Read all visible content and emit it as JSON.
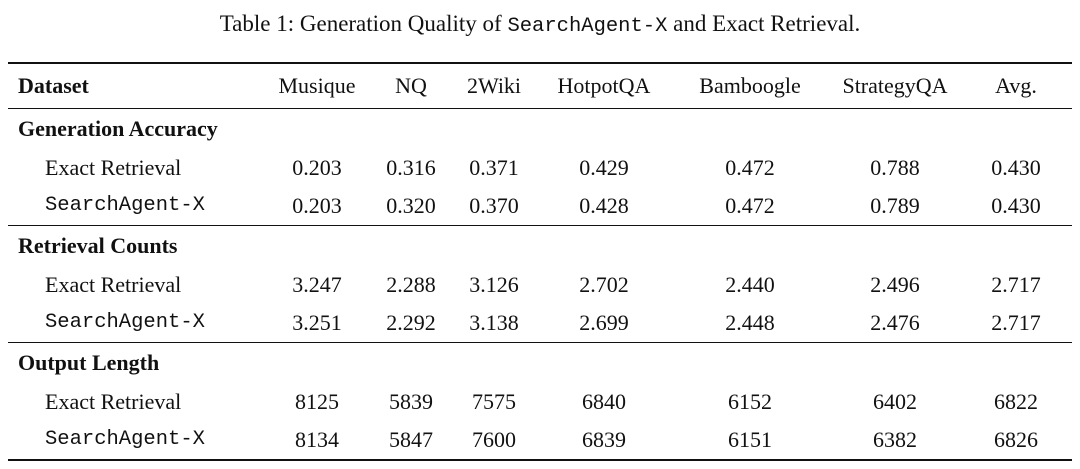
{
  "caption": {
    "prefix": "Table 1: Generation Quality of ",
    "system": "SearchAgent-X",
    "suffix": " and Exact Retrieval."
  },
  "header": [
    "Dataset",
    "Musique",
    "NQ",
    "2Wiki",
    "HotpotQA",
    "Bamboogle",
    "StrategyQA",
    "Avg."
  ],
  "sections": [
    {
      "title": "Generation Accuracy",
      "rows": [
        {
          "label": "Exact Retrieval",
          "mono": false,
          "values": [
            "0.203",
            "0.316",
            "0.371",
            "0.429",
            "0.472",
            "0.788",
            "0.430"
          ]
        },
        {
          "label": "SearchAgent-X",
          "mono": true,
          "values": [
            "0.203",
            "0.320",
            "0.370",
            "0.428",
            "0.472",
            "0.789",
            "0.430"
          ]
        }
      ]
    },
    {
      "title": "Retrieval Counts",
      "rows": [
        {
          "label": "Exact Retrieval",
          "mono": false,
          "values": [
            "3.247",
            "2.288",
            "3.126",
            "2.702",
            "2.440",
            "2.496",
            "2.717"
          ]
        },
        {
          "label": "SearchAgent-X",
          "mono": true,
          "values": [
            "3.251",
            "2.292",
            "3.138",
            "2.699",
            "2.448",
            "2.476",
            "2.717"
          ]
        }
      ]
    },
    {
      "title": "Output Length",
      "rows": [
        {
          "label": "Exact Retrieval",
          "mono": false,
          "values": [
            "8125",
            "5839",
            "7575",
            "6840",
            "6152",
            "6402",
            "6822"
          ]
        },
        {
          "label": "SearchAgent-X",
          "mono": true,
          "values": [
            "8134",
            "5847",
            "7600",
            "6839",
            "6151",
            "6382",
            "6826"
          ]
        }
      ]
    }
  ]
}
